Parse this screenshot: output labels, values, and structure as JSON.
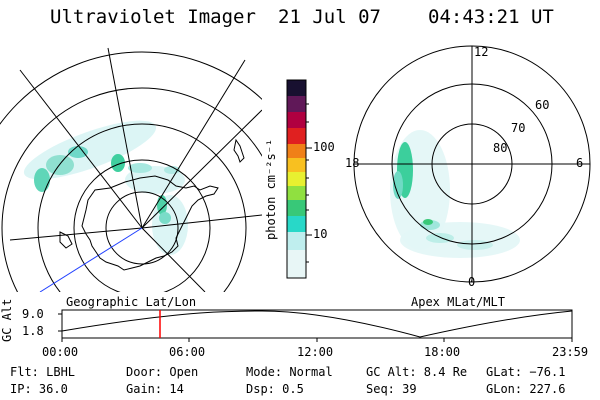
{
  "header": {
    "instrument": "Ultraviolet Imager",
    "date": "21 Jul 07",
    "time": "04:43:21 UT"
  },
  "colorbar": {
    "unit_label": "photon cm⁻²s⁻¹",
    "ticks": [
      "100",
      "10"
    ]
  },
  "apex_map": {
    "mlt_labels": [
      "12",
      "18",
      "6",
      "0"
    ],
    "mlat_labels": [
      "60",
      "70",
      "80"
    ]
  },
  "panel_labels": {
    "geographic": "Geographic Lat/Lon",
    "apex": "Apex MLat/MLT"
  },
  "altitude_plot": {
    "axis_label": "GC Alt",
    "y_ticks": [
      "9.0",
      "1.8"
    ],
    "x_ticks": [
      "00:00",
      "06:00",
      "12:00",
      "18:00",
      "23:59"
    ],
    "marker_color": "#ff0000"
  },
  "info": {
    "filter": "Flt: LBHL",
    "ip": "IP: 36.0",
    "door": "Door: Open",
    "gain": "Gain: 14",
    "mode": "Mode: Normal",
    "dsp": "Dsp:    0.5",
    "gc_alt": "GC Alt: 8.4 Re",
    "seq": "Seq: 39",
    "glat": "GLat: −76.1",
    "glon": "GLon: 227.6"
  }
}
